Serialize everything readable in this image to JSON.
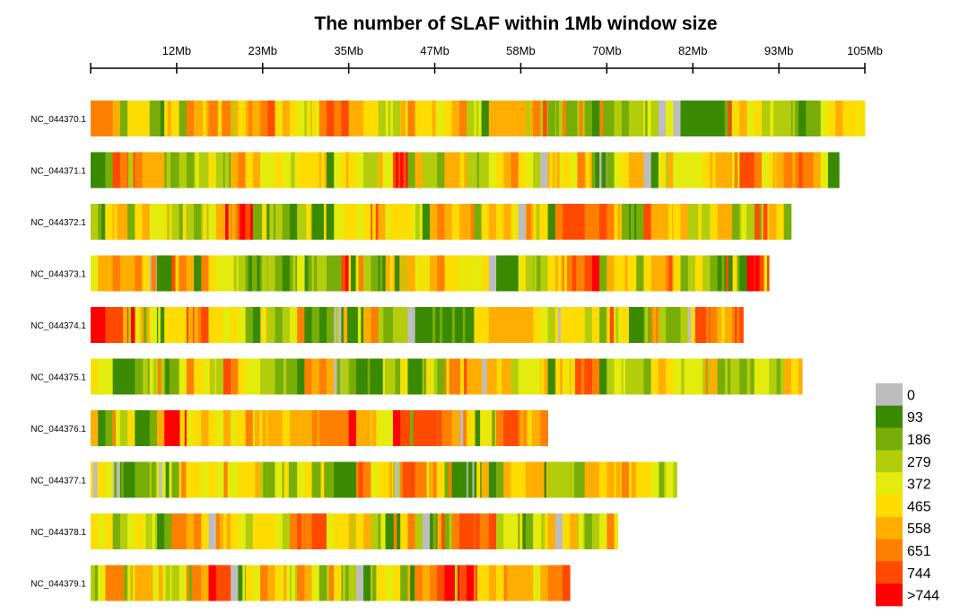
{
  "chart_data": {
    "type": "heatmap",
    "title": "The number of SLAF within 1Mb window size",
    "x_axis": {
      "unit": "Mb",
      "range": [
        0,
        105
      ],
      "tick_labels": [
        "12Mb",
        "23Mb",
        "35Mb",
        "47Mb",
        "58Mb",
        "70Mb",
        "82Mb",
        "93Mb",
        "105Mb"
      ]
    },
    "chromosomes": [
      {
        "name": "NC_044370.1",
        "length_mb": 105
      },
      {
        "name": "NC_044371.1",
        "length_mb": 101.5
      },
      {
        "name": "NC_044372.1",
        "length_mb": 95
      },
      {
        "name": "NC_044373.1",
        "length_mb": 92
      },
      {
        "name": "NC_044374.1",
        "length_mb": 88.5
      },
      {
        "name": "NC_044375.1",
        "length_mb": 96.5
      },
      {
        "name": "NC_044376.1",
        "length_mb": 62
      },
      {
        "name": "NC_044377.1",
        "length_mb": 79.5
      },
      {
        "name": "NC_044378.1",
        "length_mb": 71.5
      },
      {
        "name": "NC_044379.1",
        "length_mb": 65
      }
    ],
    "legend": {
      "labels": [
        "0",
        "93",
        "186",
        "279",
        "372",
        "465",
        "558",
        "651",
        "744",
        ">744"
      ],
      "colors": [
        "#bdbdbd",
        "#3a8a00",
        "#78ad08",
        "#b3cd0c",
        "#e3ec0c",
        "#ffdc00",
        "#ffae00",
        "#ff8000",
        "#ff4a00",
        "#ff0000"
      ]
    }
  }
}
